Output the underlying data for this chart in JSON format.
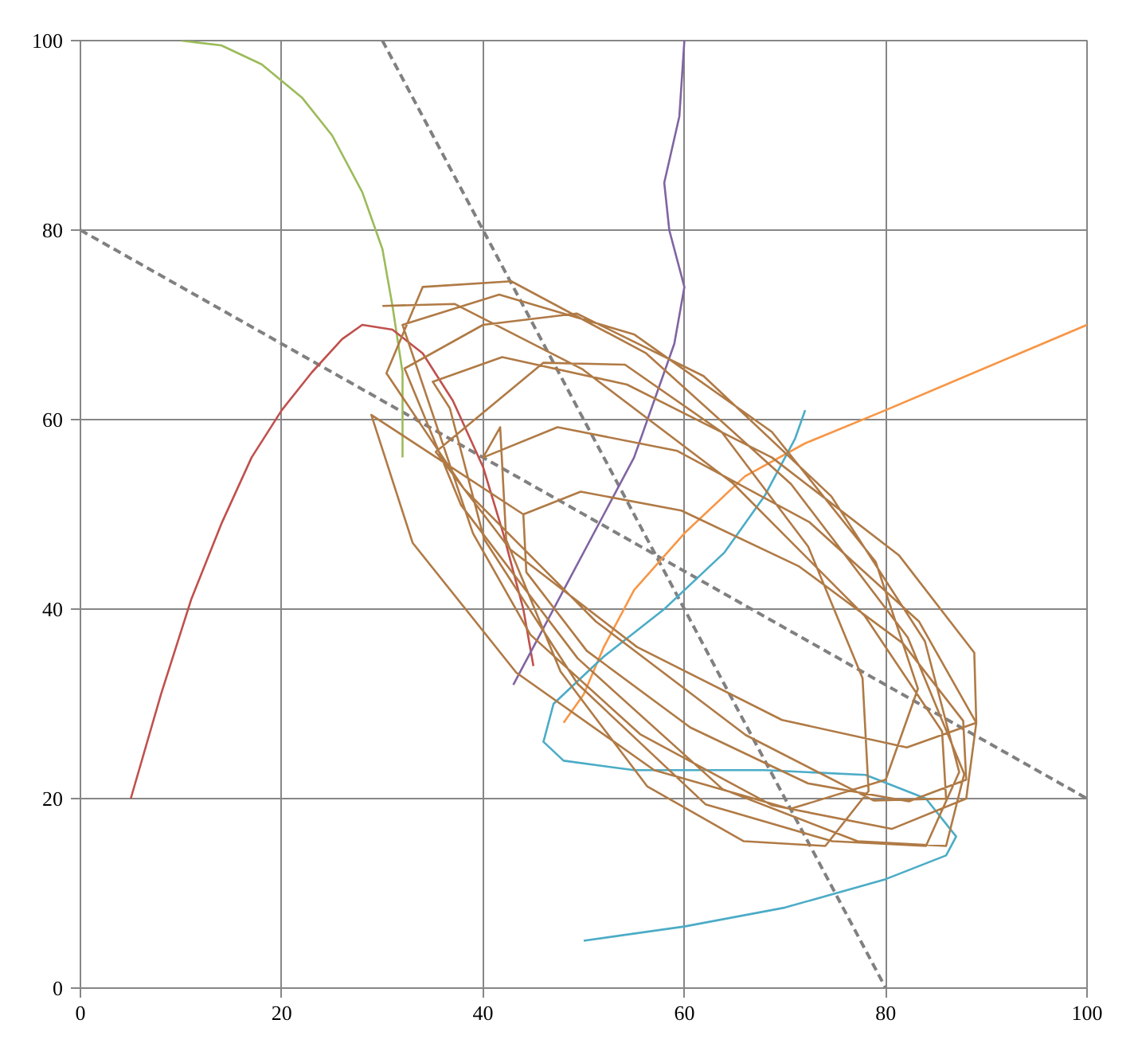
{
  "chart_data": {
    "type": "line",
    "xlim": [
      0,
      100
    ],
    "ylim": [
      0,
      100
    ],
    "xticks": [
      0,
      20,
      40,
      60,
      80,
      100
    ],
    "yticks": [
      0,
      20,
      40,
      60,
      80,
      100
    ],
    "grid": true,
    "series": [
      {
        "color": "#808080",
        "line_style": "dashed",
        "x": [
          0,
          100
        ],
        "values": [
          80,
          20
        ]
      },
      {
        "color": "#808080",
        "line_style": "dashed",
        "x": [
          30,
          80
        ],
        "values": [
          100,
          0
        ]
      },
      {
        "color": "#9bbb59",
        "x": [
          10,
          14,
          18,
          22,
          25,
          28,
          30,
          31,
          32,
          32,
          32
        ],
        "values": [
          100,
          99.5,
          97.5,
          94,
          90,
          84,
          78,
          72,
          65,
          60,
          56
        ]
      },
      {
        "color": "#c0504d",
        "x": [
          5,
          8,
          11,
          14,
          17,
          20,
          23,
          26,
          28,
          31,
          34,
          37,
          40,
          42,
          44,
          45
        ],
        "values": [
          20,
          31,
          41,
          49,
          56,
          61,
          65,
          68.5,
          70,
          69.5,
          67,
          62,
          55,
          48,
          40,
          34
        ]
      },
      {
        "color": "#8064a2",
        "x": [
          60,
          59.5,
          58,
          58.5,
          60,
          59,
          57,
          55,
          52,
          48,
          45,
          43
        ],
        "values": [
          100,
          92,
          85,
          80,
          74,
          68,
          62,
          56,
          50,
          42,
          36,
          32
        ]
      },
      {
        "color": "#f79646",
        "x": [
          100,
          90,
          80,
          72,
          66,
          60,
          55,
          52,
          50,
          48
        ],
        "values": [
          70,
          65.5,
          61,
          57.5,
          54,
          48,
          42,
          36,
          31,
          28
        ]
      },
      {
        "color": "#4bacc6",
        "x": [
          50,
          60,
          70,
          80,
          86,
          87,
          84,
          78,
          68,
          55,
          48,
          46,
          47,
          52,
          58,
          64,
          68,
          71,
          72
        ],
        "values": [
          5,
          6.5,
          8.5,
          11.5,
          14,
          16,
          20,
          22.5,
          23,
          23,
          24,
          26,
          30,
          35,
          40,
          46,
          52,
          58,
          61
        ]
      },
      {
        "color": "#b07a45",
        "x": [
          30,
          37.2,
          49.9,
          64.8,
          77.9,
          85.6,
          86,
          78.8,
          66.1,
          51.2,
          38.1,
          30.4,
          34,
          42.8,
          56.2,
          70.6,
          82.2,
          87.8,
          86,
          77.2,
          63.8,
          49.4,
          37.8,
          32.2,
          40,
          49.3,
          61.9,
          74.6,
          83.9,
          87.3,
          84,
          74.7,
          62.1,
          49.4,
          40.1,
          36.7,
          35,
          41.9,
          54.3,
          68.7,
          81.3,
          88.8,
          89,
          82.1,
          69.7,
          55.3,
          42.7,
          35.3,
          46,
          54.1,
          63.7,
          72.3,
          77.7,
          78.3,
          74,
          65.9,
          56.3,
          47.7,
          42.3,
          41.7,
          40,
          47.4,
          59.3,
          72.4,
          83.3,
          89,
          88,
          80.6,
          68.7,
          55.6,
          44.7,
          39,
          32,
          41.6,
          55,
          68.7,
          79,
          83.2,
          80,
          70.5,
          57,
          43.3,
          33,
          28.9,
          44,
          49.7,
          59.7,
          71.4,
          81.7,
          87.7,
          88,
          82.3,
          72.3,
          60.6,
          50.3,
          44.3,
          44
        ],
        "values": [
          72,
          72.2,
          65.3,
          53.3,
          39.3,
          27.1,
          20,
          19.8,
          26.7,
          38.7,
          52.7,
          64.9,
          74,
          74.6,
          67,
          53.2,
          37,
          22.6,
          15,
          15.5,
          21,
          34.8,
          51,
          65.4,
          70,
          71.2,
          64.6,
          51.9,
          36.6,
          22.8,
          15,
          15.5,
          19.4,
          32.1,
          47.4,
          61.2,
          64,
          66.6,
          63.7,
          56,
          45.7,
          35.4,
          28,
          25.4,
          28.3,
          36,
          46.3,
          56.6,
          66,
          65.8,
          58.7,
          46.6,
          32.7,
          20.8,
          15,
          15.5,
          21.3,
          33.4,
          47.3,
          59.2,
          56,
          59.2,
          56.7,
          49.2,
          38.7,
          28,
          20,
          16.8,
          19.3,
          26.8,
          37.3,
          48,
          70,
          73.2,
          69,
          58.7,
          45,
          31.6,
          22,
          18.9,
          23,
          33.3,
          47,
          60.5,
          50,
          52.4,
          50.4,
          44.5,
          36.4,
          28.2,
          22,
          19.7,
          21.6,
          27.5,
          35.6,
          43.9,
          50
        ]
      }
    ]
  }
}
